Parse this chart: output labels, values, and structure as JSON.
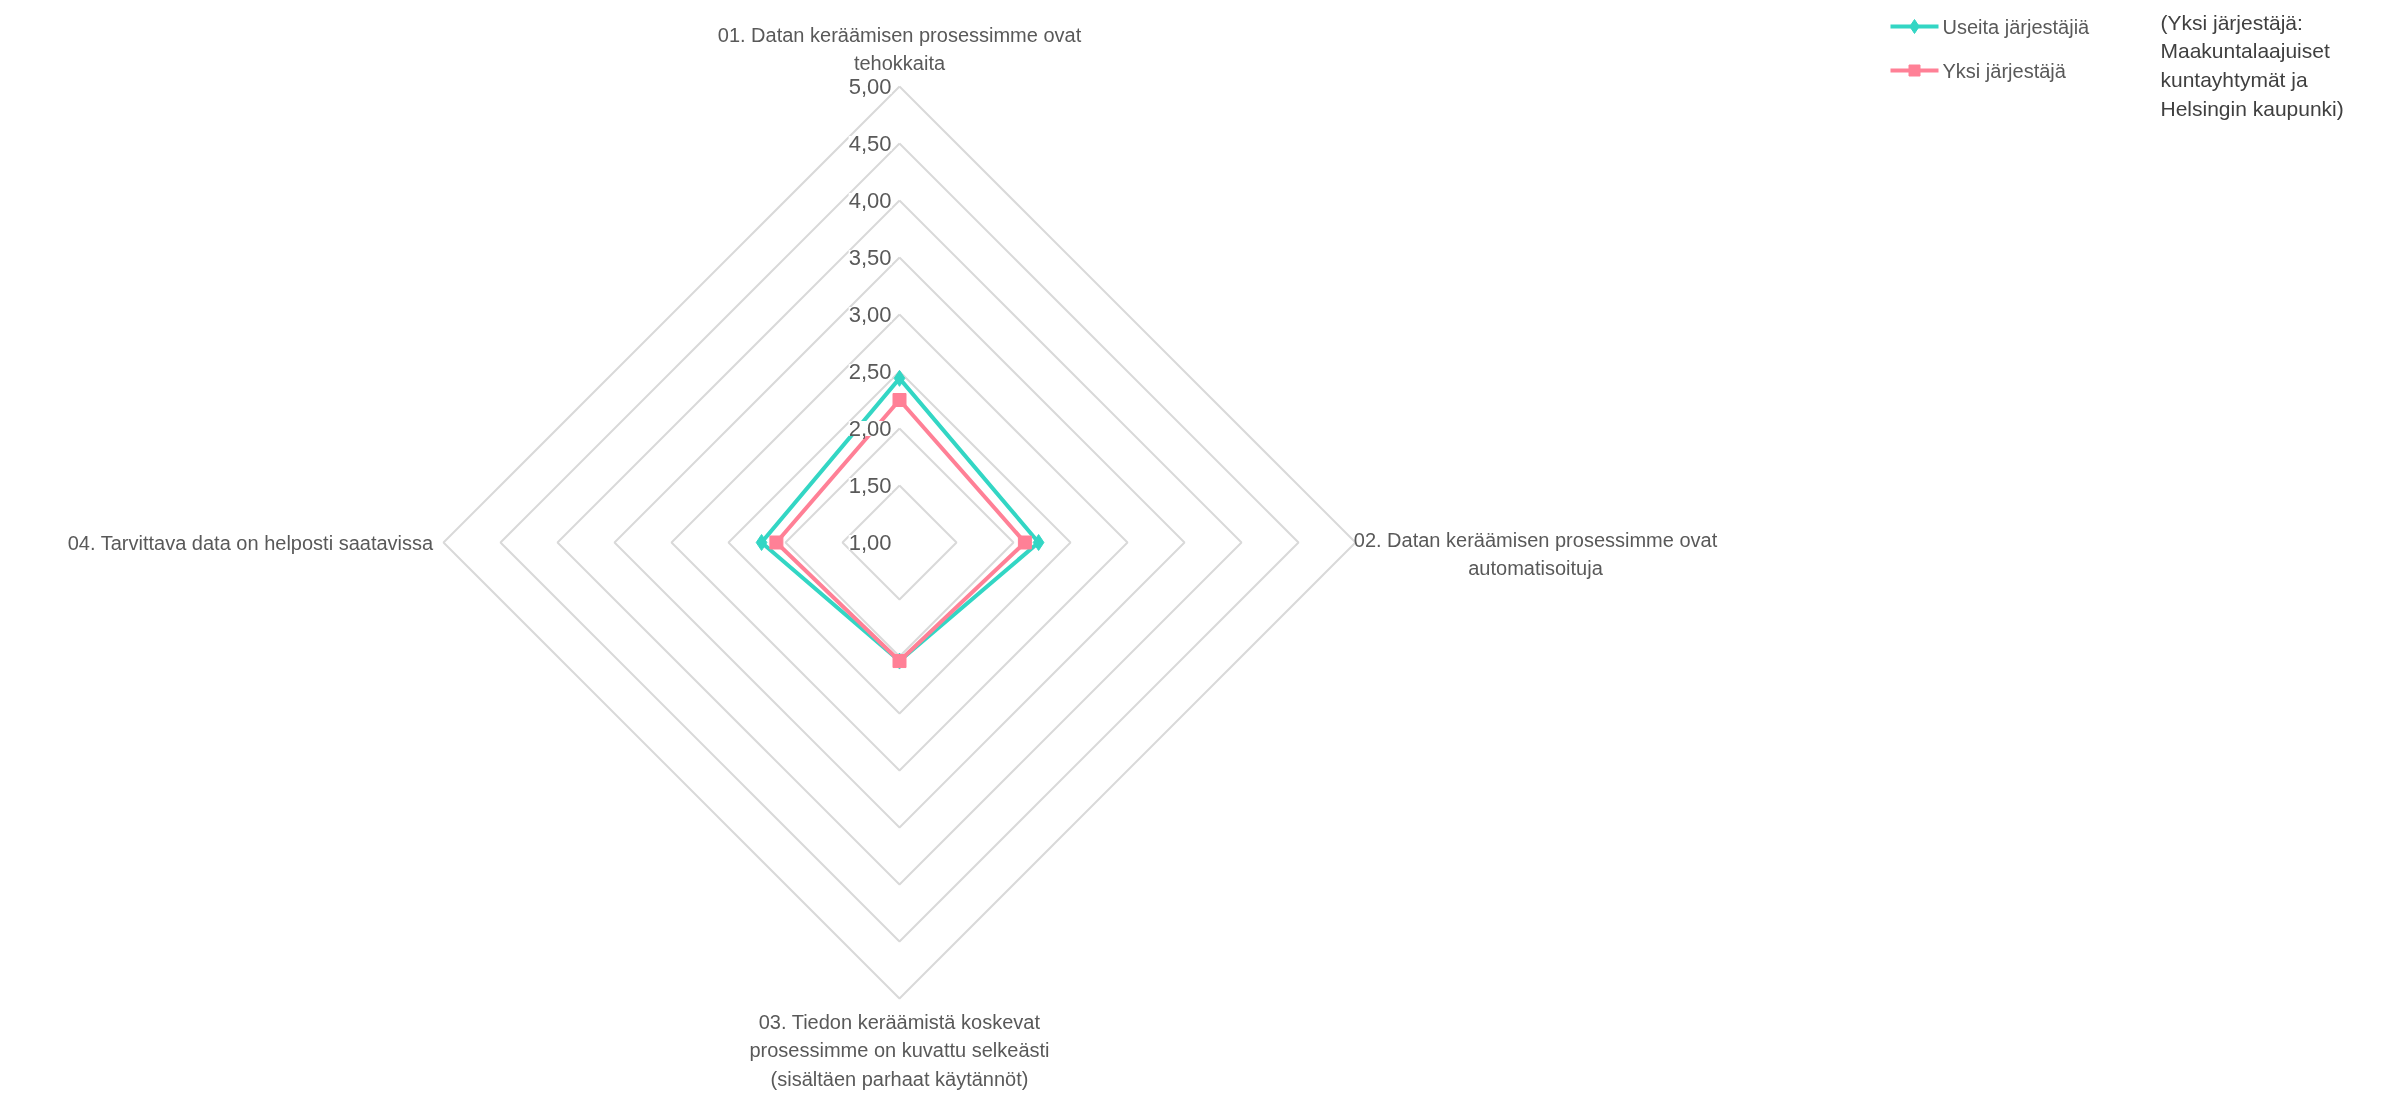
{
  "chart_data": {
    "type": "radar",
    "categories": [
      "01. Datan keräämisen prosessimme ovat tehokkaita",
      "02. Datan keräämisen prosessimme ovat automatisoituja",
      "03. Tiedon keräämistä koskevat prosessimme on kuvattu selkeästi (sisältäen parhaat käytännöt)",
      "04. Tarvittava data on helposti saatavissa"
    ],
    "series": [
      {
        "name": "Useita järjestäjiä",
        "color": "#33d6c4",
        "marker": "diamond",
        "values": [
          2.44,
          2.22,
          2.04,
          2.21
        ]
      },
      {
        "name": "Yksi järjestäjä",
        "color": "#ff8096",
        "marker": "square",
        "values": [
          2.25,
          2.1,
          2.04,
          2.08
        ]
      }
    ],
    "ylim": [
      1,
      5
    ],
    "yticks": [
      {
        "value": 1,
        "label": "1,00"
      },
      {
        "value": 1.5,
        "label": "1,50"
      },
      {
        "value": 2,
        "label": "2,00"
      },
      {
        "value": 2.5,
        "label": "2,50"
      },
      {
        "value": 3,
        "label": "3,00"
      },
      {
        "value": 3.5,
        "label": "3,50"
      },
      {
        "value": 4,
        "label": "4,00"
      },
      {
        "value": 4.5,
        "label": "4,50"
      },
      {
        "value": 5,
        "label": "5,00"
      }
    ],
    "grid": true,
    "legend": "top right",
    "line_style": "solid",
    "annotations": [
      "(Yksi järjestäjä: Maakuntalaajuiset kuntayhtymät ja Helsingin kaupunki)"
    ]
  }
}
